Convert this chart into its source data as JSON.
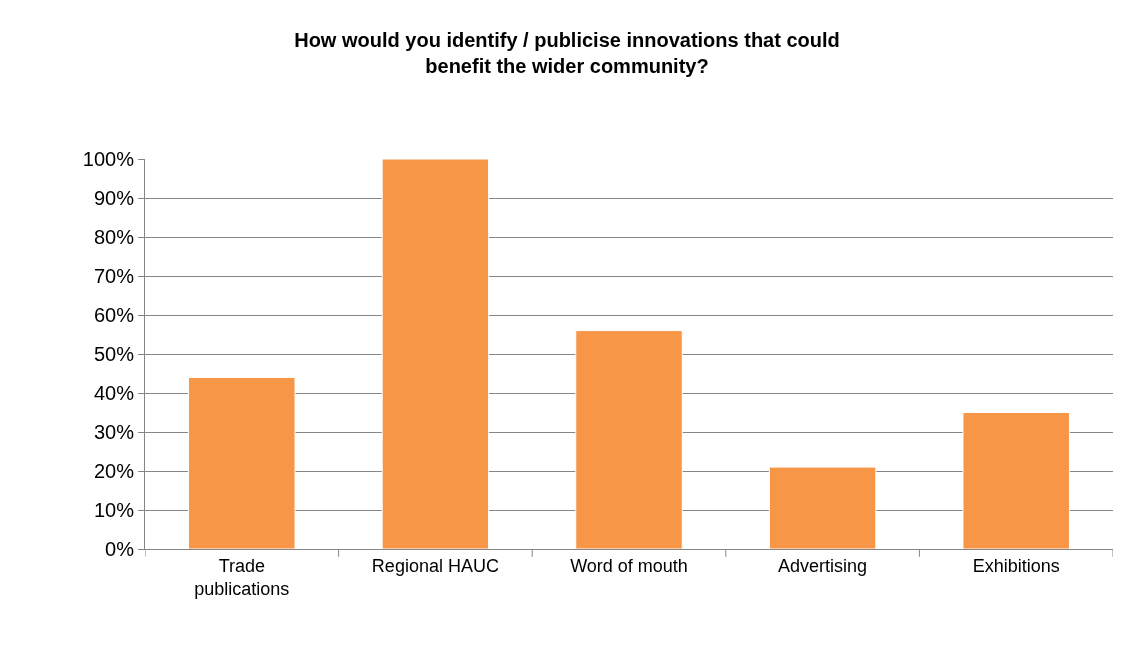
{
  "chart_data": {
    "type": "bar",
    "title": "How would you identify / publicise innovations that could benefit the wider community?",
    "categories": [
      "Trade publications",
      "Regional HAUC",
      "Word of mouth",
      "Advertising",
      "Exhibitions"
    ],
    "values": [
      44,
      100,
      56,
      21,
      35
    ],
    "color": "#f79646",
    "ylim": [
      0,
      100
    ],
    "yticks": [
      {
        "value": 0,
        "label": "0%"
      },
      {
        "value": 10,
        "label": "10%"
      },
      {
        "value": 20,
        "label": "20%"
      },
      {
        "value": 30,
        "label": "30%"
      },
      {
        "value": 40,
        "label": "40%"
      },
      {
        "value": 50,
        "label": "50%"
      },
      {
        "value": 60,
        "label": "60%"
      },
      {
        "value": 70,
        "label": "70%"
      },
      {
        "value": 80,
        "label": "80%"
      },
      {
        "value": 90,
        "label": "90%"
      },
      {
        "value": 100,
        "label": "100%"
      }
    ],
    "grid": "y"
  }
}
